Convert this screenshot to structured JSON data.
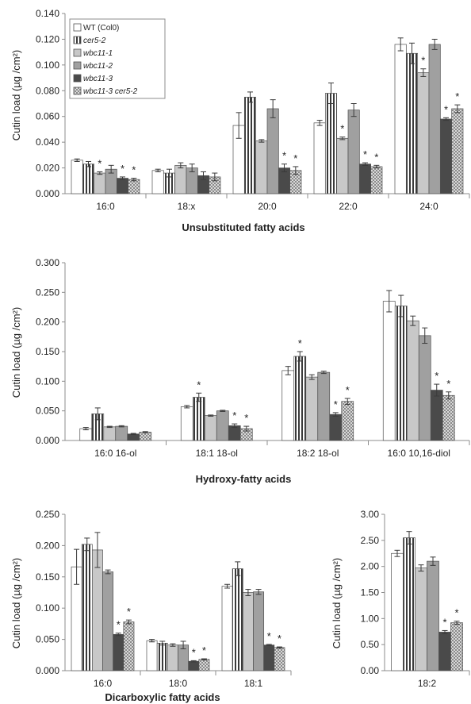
{
  "legend": {
    "entries": [
      {
        "label": "WT (Col0)",
        "pattern": "white"
      },
      {
        "label": "cer5-2",
        "pattern": "vstripe",
        "italic": true
      },
      {
        "label": "wbc11-1",
        "pattern": "light",
        "italic": true
      },
      {
        "label": "wbc11-2",
        "pattern": "mid",
        "italic": true
      },
      {
        "label": "wbc11-3",
        "pattern": "dark",
        "italic": true
      },
      {
        "label": "wbc11-3 cer5-2",
        "pattern": "check",
        "italic": true
      }
    ]
  },
  "styles": {
    "white": "#ffffff",
    "stripe_dark": "#3a3a3a",
    "light": "#c8c8c8",
    "mid": "#a0a0a0",
    "dark": "#4a4a4a",
    "check_a": "#d9d9d9",
    "check_b": "#8a8a8a",
    "axis": "#8c8c8c",
    "bar_border": "#505050",
    "error": "#3a3a3a"
  },
  "chart_data": [
    {
      "type": "bar",
      "xlabel": "Unsubstituted fatty acids",
      "ylabel": "Cutin load (µg /cm²)",
      "ylim": [
        0,
        0.14
      ],
      "yticks": [
        "0.000",
        "0.020",
        "0.040",
        "0.060",
        "0.080",
        "0.100",
        "0.120",
        "0.140"
      ],
      "legend_position": "top-left",
      "categories": [
        "16:0",
        "18:x",
        "20:0",
        "22:0",
        "24:0"
      ],
      "series": [
        {
          "name": "WT (Col0)",
          "values": [
            0.026,
            0.018,
            0.053,
            0.055,
            0.116
          ],
          "errors": [
            0.001,
            0.001,
            0.01,
            0.002,
            0.005
          ]
        },
        {
          "name": "cer5-2",
          "values": [
            0.023,
            0.016,
            0.075,
            0.078,
            0.109
          ],
          "errors": [
            0.002,
            0.003,
            0.004,
            0.008,
            0.008
          ]
        },
        {
          "name": "wbc11-1",
          "values": [
            0.016,
            0.022,
            0.041,
            0.043,
            0.094
          ],
          "errors": [
            0.001,
            0.002,
            0.001,
            0.001,
            0.003
          ]
        },
        {
          "name": "wbc11-2",
          "values": [
            0.019,
            0.02,
            0.066,
            0.065,
            0.116
          ],
          "errors": [
            0.003,
            0.003,
            0.007,
            0.005,
            0.004
          ]
        },
        {
          "name": "wbc11-3",
          "values": [
            0.012,
            0.014,
            0.02,
            0.023,
            0.058
          ],
          "errors": [
            0.001,
            0.003,
            0.003,
            0.001,
            0.001
          ]
        },
        {
          "name": "wbc11-3 cer5-2",
          "values": [
            0.011,
            0.013,
            0.018,
            0.021,
            0.066
          ],
          "errors": [
            0.001,
            0.003,
            0.003,
            0.001,
            0.003
          ]
        }
      ],
      "significance": [
        [
          false,
          false,
          false,
          false,
          false
        ],
        [
          false,
          false,
          false,
          false,
          false
        ],
        [
          true,
          false,
          false,
          true,
          true
        ],
        [
          false,
          false,
          false,
          false,
          false
        ],
        [
          true,
          false,
          true,
          true,
          true
        ],
        [
          true,
          false,
          true,
          true,
          true
        ]
      ]
    },
    {
      "type": "bar",
      "xlabel": "Hydroxy-fatty acids",
      "ylabel": "Cutin load (µg /cm²)",
      "ylim": [
        0,
        0.3
      ],
      "yticks": [
        "0.000",
        "0.050",
        "0.100",
        "0.150",
        "0.200",
        "0.250",
        "0.300"
      ],
      "categories": [
        "16:0 16-ol",
        "18:1 18-ol",
        "18:2 18-ol",
        "16:0 10,16-diol"
      ],
      "series": [
        {
          "name": "WT (Col0)",
          "values": [
            0.02,
            0.057,
            0.118,
            0.235
          ],
          "errors": [
            0.002,
            0.002,
            0.007,
            0.018
          ]
        },
        {
          "name": "cer5-2",
          "values": [
            0.045,
            0.073,
            0.142,
            0.227
          ],
          "errors": [
            0.01,
            0.007,
            0.008,
            0.018
          ]
        },
        {
          "name": "wbc11-1",
          "values": [
            0.023,
            0.042,
            0.107,
            0.202
          ],
          "errors": [
            0.001,
            0.001,
            0.004,
            0.008
          ]
        },
        {
          "name": "wbc11-2",
          "values": [
            0.024,
            0.05,
            0.115,
            0.177
          ],
          "errors": [
            0.001,
            0.001,
            0.002,
            0.013
          ]
        },
        {
          "name": "wbc11-3",
          "values": [
            0.011,
            0.025,
            0.044,
            0.085
          ],
          "errors": [
            0.001,
            0.003,
            0.003,
            0.01
          ]
        },
        {
          "name": "wbc11-3 cer5-2",
          "values": [
            0.014,
            0.02,
            0.066,
            0.076
          ],
          "errors": [
            0.001,
            0.004,
            0.005,
            0.006
          ]
        }
      ],
      "significance": [
        [
          false,
          false,
          false,
          false
        ],
        [
          false,
          true,
          true,
          false
        ],
        [
          false,
          false,
          false,
          false
        ],
        [
          false,
          false,
          false,
          false
        ],
        [
          false,
          true,
          true,
          true
        ],
        [
          false,
          true,
          true,
          true
        ]
      ]
    },
    {
      "type": "bar",
      "xlabel": "Dicarboxylic fatty acids",
      "ylabel": "Cutin load (µg /cm²)",
      "ylim": [
        0,
        0.25
      ],
      "yticks": [
        "0.000",
        "0.050",
        "0.100",
        "0.150",
        "0.200",
        "0.250"
      ],
      "categories": [
        "16:0",
        "18:0",
        "18:1"
      ],
      "series": [
        {
          "name": "WT (Col0)",
          "values": [
            0.166,
            0.048,
            0.135
          ],
          "errors": [
            0.028,
            0.002,
            0.003
          ]
        },
        {
          "name": "cer5-2",
          "values": [
            0.202,
            0.044,
            0.163
          ],
          "errors": [
            0.01,
            0.003,
            0.011
          ]
        },
        {
          "name": "wbc11-1",
          "values": [
            0.193,
            0.041,
            0.125
          ],
          "errors": [
            0.028,
            0.002,
            0.005
          ]
        },
        {
          "name": "wbc11-2",
          "values": [
            0.158,
            0.041,
            0.126
          ],
          "errors": [
            0.003,
            0.006,
            0.004
          ]
        },
        {
          "name": "wbc11-3",
          "values": [
            0.058,
            0.015,
            0.041
          ],
          "errors": [
            0.002,
            0.001,
            0.001
          ]
        },
        {
          "name": "wbc11-3 cer5-2",
          "values": [
            0.078,
            0.018,
            0.037
          ],
          "errors": [
            0.003,
            0.001,
            0.001
          ]
        }
      ],
      "significance": [
        [
          false,
          false,
          false
        ],
        [
          false,
          false,
          false
        ],
        [
          false,
          false,
          false
        ],
        [
          false,
          false,
          false
        ],
        [
          true,
          true,
          true
        ],
        [
          true,
          true,
          true
        ]
      ]
    },
    {
      "type": "bar",
      "xlabel": "",
      "ylabel": "Cutin load (µg /cm²)",
      "ylim": [
        0,
        3.0
      ],
      "yticks": [
        "0.00",
        "0.50",
        "1.00",
        "1.50",
        "2.00",
        "2.50",
        "3.00"
      ],
      "categories": [
        "18:2"
      ],
      "series": [
        {
          "name": "WT (Col0)",
          "values": [
            2.25
          ],
          "errors": [
            0.06
          ]
        },
        {
          "name": "cer5-2",
          "values": [
            2.55
          ],
          "errors": [
            0.12
          ]
        },
        {
          "name": "wbc11-1",
          "values": [
            1.97
          ],
          "errors": [
            0.06
          ]
        },
        {
          "name": "wbc11-2",
          "values": [
            2.1
          ],
          "errors": [
            0.08
          ]
        },
        {
          "name": "wbc11-3",
          "values": [
            0.74
          ],
          "errors": [
            0.03
          ]
        },
        {
          "name": "wbc11-3 cer5-2",
          "values": [
            0.92
          ],
          "errors": [
            0.03
          ]
        }
      ],
      "significance": [
        [
          false
        ],
        [
          false
        ],
        [
          false
        ],
        [
          false
        ],
        [
          true
        ],
        [
          true
        ]
      ]
    }
  ]
}
